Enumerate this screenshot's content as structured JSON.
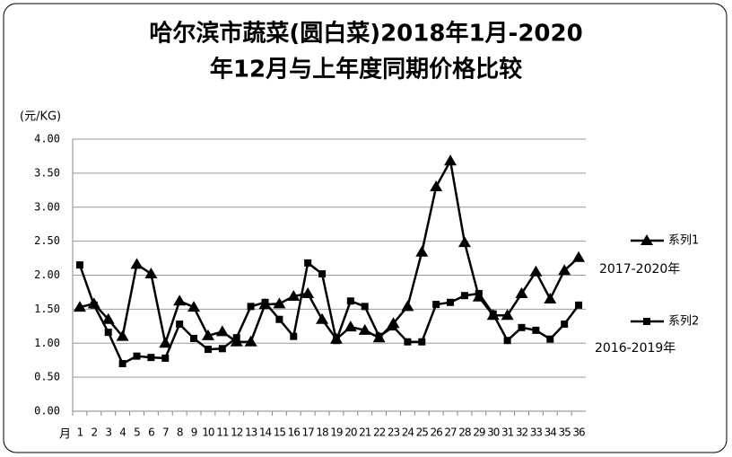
{
  "chart_data": {
    "type": "line",
    "title": [
      "哈尔滨市蔬菜(圆白菜)2018年1月-2020",
      "年12月与上年度同期价格比较"
    ],
    "y_label": "(元/KG)",
    "x_label": "月",
    "categories": [
      "1",
      "2",
      "3",
      "4",
      "5",
      "6",
      "7",
      "8",
      "9",
      "10",
      "11",
      "12",
      "13",
      "14",
      "15",
      "16",
      "17",
      "18",
      "19",
      "20",
      "21",
      "22",
      "23",
      "24",
      "25",
      "26",
      "27",
      "28",
      "29",
      "30",
      "31",
      "32",
      "33",
      "34",
      "35",
      "36"
    ],
    "series": [
      {
        "name": "系列1",
        "color": "#000000",
        "marker": "triangle",
        "annotation": "2017-2020年",
        "values": [
          1.53,
          1.58,
          1.35,
          1.1,
          2.16,
          2.02,
          1.0,
          1.62,
          1.53,
          1.11,
          1.17,
          1.02,
          1.02,
          1.57,
          1.58,
          1.69,
          1.73,
          1.35,
          1.06,
          1.24,
          1.19,
          1.08,
          1.29,
          1.54,
          2.34,
          3.3,
          3.68,
          2.48,
          1.68,
          1.41,
          1.41,
          1.73,
          2.05,
          1.65,
          2.07,
          2.26
        ]
      },
      {
        "name": "系列2",
        "color": "#000000",
        "marker": "square",
        "annotation": "2016-2019年",
        "values": [
          2.15,
          1.56,
          1.16,
          0.7,
          0.81,
          0.79,
          0.78,
          1.28,
          1.07,
          0.91,
          0.92,
          1.08,
          1.54,
          1.6,
          1.35,
          1.1,
          2.18,
          2.02,
          1.04,
          1.62,
          1.54,
          1.1,
          1.24,
          1.02,
          1.02,
          1.57,
          1.6,
          1.7,
          1.73,
          1.43,
          1.04,
          1.23,
          1.19,
          1.06,
          1.28,
          1.56
        ]
      }
    ],
    "ylim": [
      0,
      4
    ],
    "yticks": [
      {
        "value": 0,
        "label": "0.00"
      },
      {
        "value": 0.5,
        "label": "0.50"
      },
      {
        "value": 1,
        "label": "1.00"
      },
      {
        "value": 1.5,
        "label": "1.50"
      },
      {
        "value": 2,
        "label": "2.00"
      },
      {
        "value": 2.5,
        "label": "2.50"
      },
      {
        "value": 3,
        "label": "3.00"
      },
      {
        "value": 3.5,
        "label": "3.50"
      },
      {
        "value": 4,
        "label": "4.00"
      }
    ],
    "grid": true
  }
}
